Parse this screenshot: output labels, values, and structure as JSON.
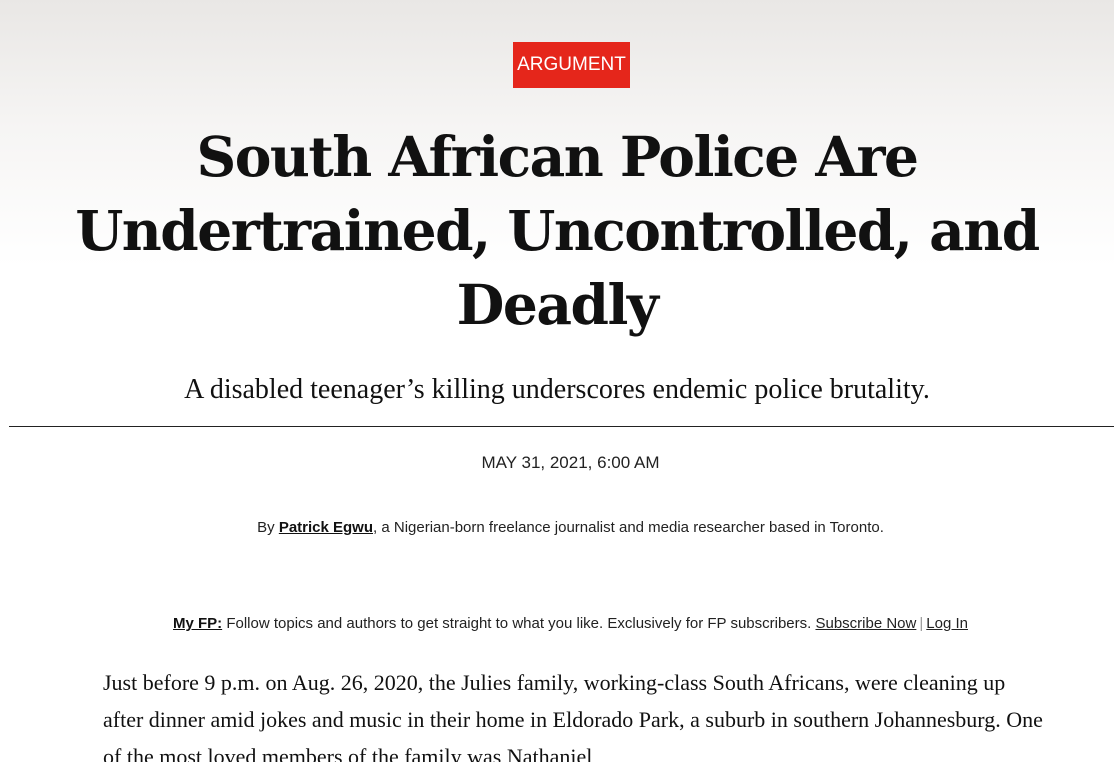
{
  "article": {
    "category": "ARGUMENT",
    "headline": "South African Police Are Undertrained, Uncontrolled, and Deadly",
    "deck": "A disabled teenager’s killing underscores endemic police brutality.",
    "date": "MAY 31, 2021, 6:00 AM",
    "byline": {
      "prefix": "By ",
      "author": "Patrick Egwu",
      "description": ", a Nigerian-born freelance journalist and media researcher based in Toronto."
    },
    "body_paragraph": "Just before 9 p.m. on Aug. 26, 2020, the Julies family, working-class South Africans, were cleaning up after dinner amid jokes and music in their home in Eldorado Park, a suburb in southern Johannesburg. One of the most loved members of the family was Nathaniel"
  },
  "myfp": {
    "label": "My FP:",
    "text": " Follow topics and authors to get straight to what you like. Exclusively for FP subscribers. ",
    "subscribe_label": "Subscribe Now",
    "separator": "|",
    "login_label": "Log In"
  },
  "colors": {
    "badge_red": "#e5261b",
    "text": "#111111"
  }
}
